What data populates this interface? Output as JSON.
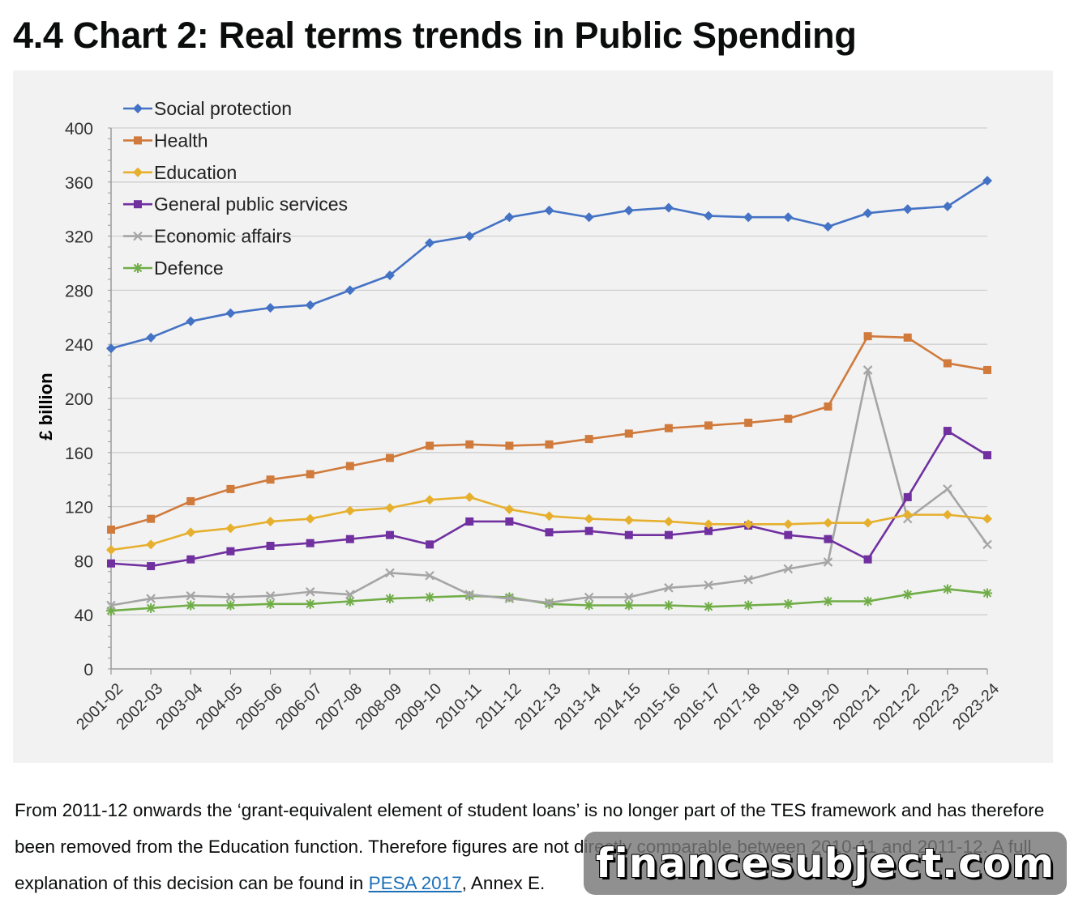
{
  "page": {
    "heading": "4.4 Chart 2: Real terms trends in Public Spending",
    "note_part1": "From 2011-12 onwards the ‘grant-equivalent element of student loans’ is no longer part of the TES framework and has therefore been removed from the Education function. Therefore figures are not directly comparable between 2010-11 and 2011-12. A full explanation of this decision can be found in ",
    "note_link": "PESA 2017",
    "note_part2": ", Annex E.",
    "watermark": "financesubject.com"
  },
  "chart_data": {
    "type": "line",
    "title": "",
    "xlabel": "",
    "ylabel": "£ billion",
    "ylim": [
      0,
      400
    ],
    "yticks": [
      0,
      40,
      80,
      120,
      160,
      200,
      240,
      280,
      320,
      360,
      400
    ],
    "grid": true,
    "legend_placement": "top-left",
    "categories": [
      "2001-02",
      "2002-03",
      "2003-04",
      "2004-05",
      "2005-06",
      "2006-07",
      "2007-08",
      "2008-09",
      "2009-10",
      "2010-11",
      "2011-12",
      "2012-13",
      "2013-14",
      "2014-15",
      "2015-16",
      "2016-17",
      "2017-18",
      "2018-19",
      "2019-20",
      "2020-21",
      "2021-22",
      "2022-23",
      "2023-24"
    ],
    "series": [
      {
        "name": "Social protection",
        "color": "#4472c4",
        "marker": "diamond",
        "values": [
          237,
          245,
          257,
          263,
          267,
          269,
          280,
          291,
          315,
          320,
          334,
          339,
          334,
          339,
          341,
          335,
          334,
          334,
          327,
          337,
          340,
          342,
          361
        ]
      },
      {
        "name": "Health",
        "color": "#d07a3c",
        "marker": "square",
        "values": [
          103,
          111,
          124,
          133,
          140,
          144,
          150,
          156,
          165,
          166,
          165,
          166,
          170,
          174,
          178,
          180,
          182,
          185,
          194,
          246,
          245,
          226,
          221
        ]
      },
      {
        "name": "Education",
        "color": "#e6b02e",
        "marker": "diamond",
        "values": [
          88,
          92,
          101,
          104,
          109,
          111,
          117,
          119,
          125,
          127,
          118,
          113,
          111,
          110,
          109,
          107,
          107,
          107,
          108,
          108,
          114,
          114,
          111
        ]
      },
      {
        "name": "General public services",
        "color": "#7030a0",
        "marker": "square",
        "values": [
          78,
          76,
          81,
          87,
          91,
          93,
          96,
          99,
          92,
          109,
          109,
          101,
          102,
          99,
          99,
          102,
          106,
          99,
          96,
          81,
          127,
          176,
          158
        ]
      },
      {
        "name": "Economic affairs",
        "color": "#a5a5a5",
        "marker": "x",
        "values": [
          47,
          52,
          54,
          53,
          54,
          57,
          55,
          71,
          69,
          55,
          52,
          49,
          53,
          53,
          60,
          62,
          66,
          74,
          79,
          221,
          111,
          133,
          92
        ]
      },
      {
        "name": "Defence",
        "color": "#70ad47",
        "marker": "star",
        "values": [
          43,
          45,
          47,
          47,
          48,
          48,
          50,
          52,
          53,
          54,
          53,
          48,
          47,
          47,
          47,
          46,
          47,
          48,
          50,
          50,
          55,
          59,
          56
        ]
      }
    ]
  }
}
